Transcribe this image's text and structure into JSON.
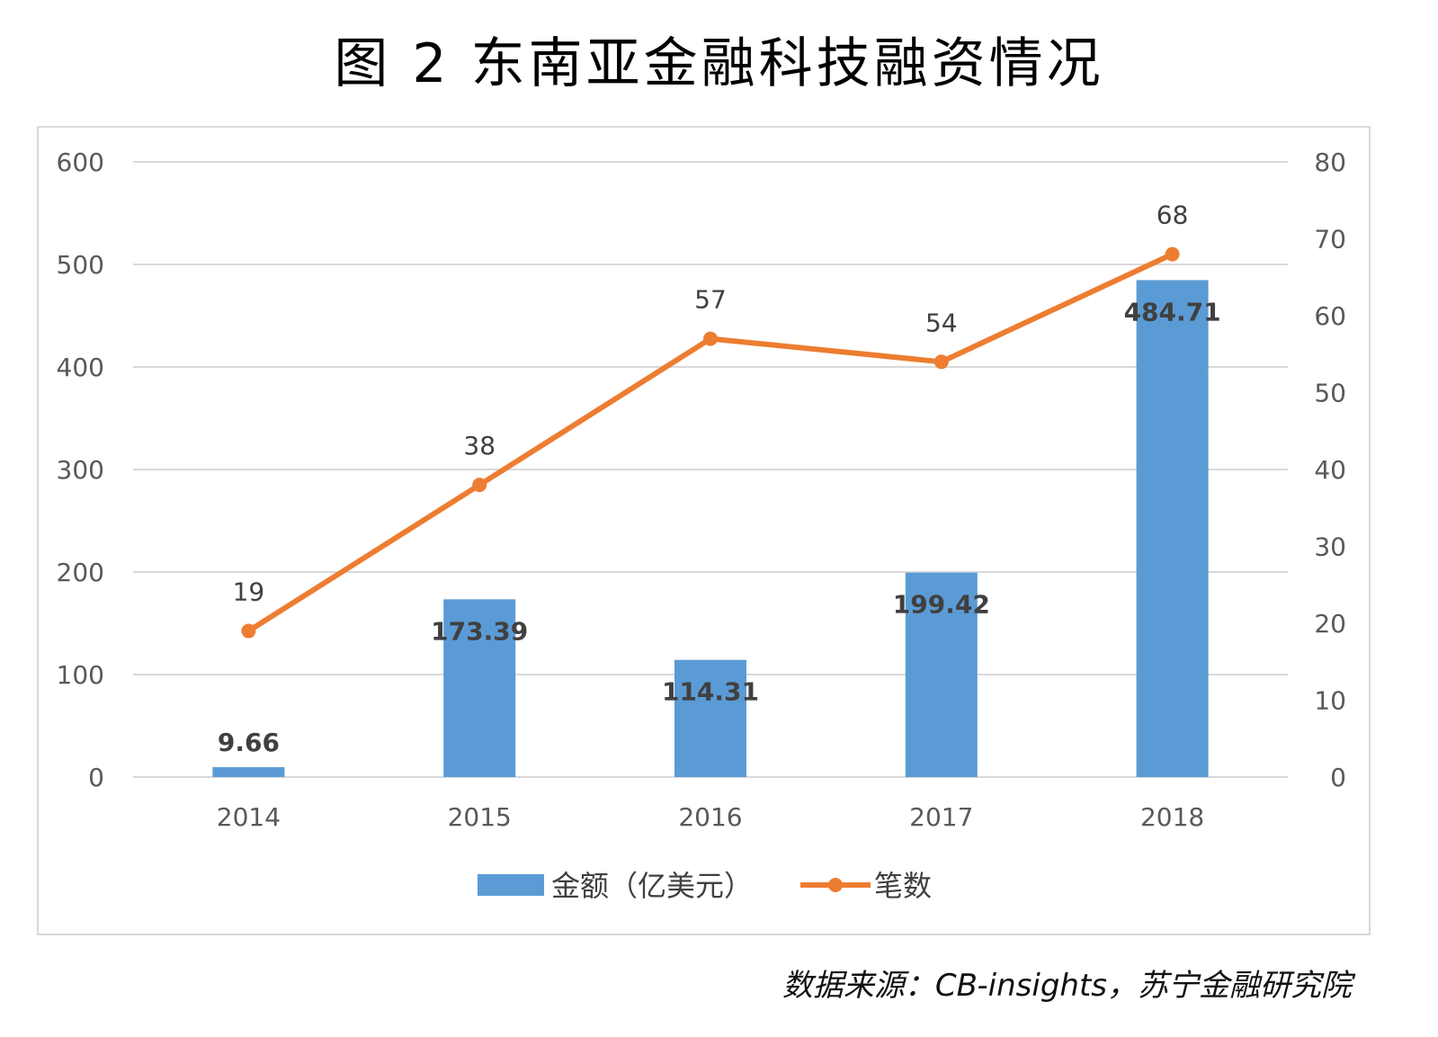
{
  "title": "图 2  东南亚金融科技融资情况",
  "source": "数据来源：CB-insights，苏宁金融研究院",
  "colors": {
    "bar": "#5b9bd5",
    "line": "#ed7d31",
    "grid": "#d9d9d9"
  },
  "chart_data": {
    "type": "bar",
    "categories": [
      "2014",
      "2015",
      "2016",
      "2017",
      "2018"
    ],
    "series": [
      {
        "name": "金额（亿美元）",
        "type": "bar",
        "axis": "left",
        "values": [
          9.66,
          173.39,
          114.31,
          199.42,
          484.71
        ],
        "labels": [
          "9.66",
          "173.39",
          "114.31",
          "199.42",
          "484.71"
        ]
      },
      {
        "name": "笔数",
        "type": "line",
        "axis": "right",
        "values": [
          19,
          38,
          57,
          54,
          68
        ],
        "labels": [
          "19",
          "38",
          "57",
          "54",
          "68"
        ]
      }
    ],
    "y_left": {
      "min": 0,
      "max": 600,
      "ticks": [
        "0",
        "100",
        "200",
        "300",
        "400",
        "500",
        "600"
      ]
    },
    "y_right": {
      "min": 0,
      "max": 80,
      "ticks": [
        "0",
        "10",
        "20",
        "30",
        "40",
        "50",
        "60",
        "70",
        "80"
      ]
    },
    "grid": true,
    "legend": "bottom"
  }
}
